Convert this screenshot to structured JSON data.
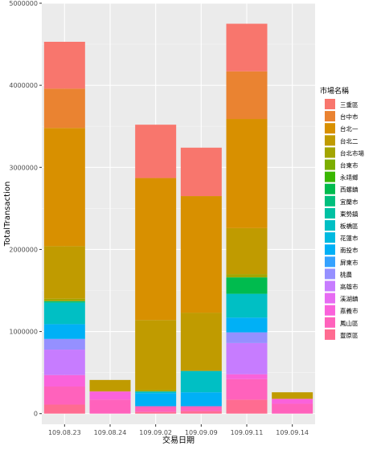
{
  "chart_data": {
    "type": "bar",
    "stacked": true,
    "categories": [
      "109.08.23",
      "109.08.24",
      "109.09.02",
      "109.09.09",
      "109.09.11",
      "109.09.14"
    ],
    "xlabel": "交易日期",
    "ylabel": "TotalTransaction",
    "ylim": [
      -130000,
      5000000
    ],
    "yticks": [
      0,
      1000000,
      2000000,
      3000000,
      4000000,
      5000000
    ],
    "ytick_labels": [
      "0",
      "1000000",
      "2000000",
      "3000000",
      "4000000",
      "5000000"
    ],
    "grid": true,
    "legend_position": "right",
    "legend_title": "市場名稱",
    "series": [
      {
        "name": "三重區",
        "color": "#F8766D",
        "values": [
          570000,
          0,
          650000,
          590000,
          580000,
          0
        ]
      },
      {
        "name": "台中市",
        "color": "#EA8331",
        "values": [
          480000,
          0,
          0,
          0,
          580000,
          0
        ]
      },
      {
        "name": "台北一",
        "color": "#D89000",
        "values": [
          1440000,
          0,
          1730000,
          1420000,
          1330000,
          0
        ]
      },
      {
        "name": "台北二",
        "color": "#C09B00",
        "values": [
          640000,
          140000,
          850000,
          710000,
          560000,
          80000
        ]
      },
      {
        "name": "台北市場",
        "color": "#A3A500",
        "values": [
          30000,
          0,
          20000,
          0,
          40000,
          0
        ]
      },
      {
        "name": "台東市",
        "color": "#7CAE00",
        "values": [
          0,
          0,
          0,
          0,
          0,
          0
        ]
      },
      {
        "name": "永靖鄉",
        "color": "#39B600",
        "values": [
          0,
          0,
          0,
          0,
          0,
          0
        ]
      },
      {
        "name": "西螺鎮",
        "color": "#00BB4E",
        "values": [
          0,
          0,
          0,
          0,
          200000,
          0
        ]
      },
      {
        "name": "宜蘭市",
        "color": "#00BF7D",
        "values": [
          20000,
          0,
          0,
          0,
          0,
          0
        ]
      },
      {
        "name": "東勢鎮",
        "color": "#00C1A3",
        "values": [
          0,
          0,
          0,
          0,
          0,
          0
        ]
      },
      {
        "name": "板橋區",
        "color": "#00BFC4",
        "values": [
          260000,
          0,
          20000,
          260000,
          290000,
          0
        ]
      },
      {
        "name": "花蓮市",
        "color": "#00BAE0",
        "values": [
          0,
          0,
          0,
          0,
          0,
          0
        ]
      },
      {
        "name": "南投市",
        "color": "#00B0F6",
        "values": [
          180000,
          0,
          160000,
          170000,
          180000,
          0
        ]
      },
      {
        "name": "屏東市",
        "color": "#35A2FF",
        "values": [
          0,
          0,
          0,
          0,
          0,
          0
        ]
      },
      {
        "name": "桃農",
        "color": "#9590FF",
        "values": [
          130000,
          0,
          0,
          0,
          130000,
          0
        ]
      },
      {
        "name": "高雄市",
        "color": "#C77CFF",
        "values": [
          310000,
          0,
          0,
          0,
          380000,
          0
        ]
      },
      {
        "name": "溪湖鎮",
        "color": "#E76BF3",
        "values": [
          0,
          0,
          0,
          0,
          0,
          0
        ]
      },
      {
        "name": "嘉義市",
        "color": "#FA62DB",
        "values": [
          140000,
          100000,
          0,
          0,
          60000,
          60000
        ]
      },
      {
        "name": "鳳山區",
        "color": "#FF62BC",
        "values": [
          220000,
          170000,
          70000,
          60000,
          250000,
          120000
        ]
      },
      {
        "name": "豐原區",
        "color": "#FF6C91",
        "values": [
          110000,
          0,
          20000,
          30000,
          170000,
          0
        ]
      }
    ]
  }
}
